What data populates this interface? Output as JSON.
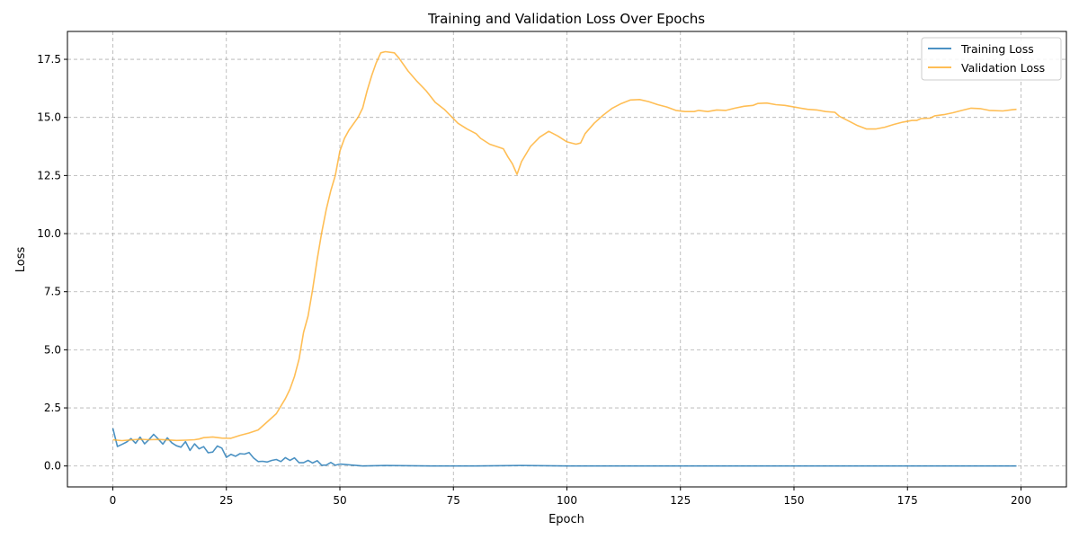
{
  "chart_data": {
    "type": "line",
    "title": "Training and Validation Loss Over Epochs",
    "xlabel": "Epoch",
    "ylabel": "Loss",
    "xlim": [
      -10,
      210
    ],
    "ylim": [
      -0.9,
      18.7
    ],
    "xticks": [
      0,
      25,
      50,
      75,
      100,
      125,
      150,
      175,
      200
    ],
    "yticks": [
      0.0,
      2.5,
      5.0,
      7.5,
      10.0,
      12.5,
      15.0,
      17.5
    ],
    "xtick_labels": [
      "0",
      "25",
      "50",
      "75",
      "100",
      "125",
      "150",
      "175",
      "200"
    ],
    "ytick_labels": [
      "0.0",
      "2.5",
      "5.0",
      "7.5",
      "10.0",
      "12.5",
      "15.0",
      "17.5"
    ],
    "grid": true,
    "legend_position": "top-right",
    "series": [
      {
        "name": "Training Loss",
        "color": "#1f77b4",
        "points": [
          [
            0,
            1.62
          ],
          [
            1,
            0.84
          ],
          [
            2,
            0.93
          ],
          [
            3,
            1.03
          ],
          [
            4,
            1.18
          ],
          [
            5,
            0.98
          ],
          [
            6,
            1.24
          ],
          [
            7,
            0.95
          ],
          [
            8,
            1.14
          ],
          [
            9,
            1.36
          ],
          [
            10,
            1.16
          ],
          [
            11,
            0.94
          ],
          [
            12,
            1.21
          ],
          [
            13,
            1.0
          ],
          [
            14,
            0.87
          ],
          [
            15,
            0.81
          ],
          [
            16,
            1.05
          ],
          [
            17,
            0.67
          ],
          [
            18,
            0.95
          ],
          [
            19,
            0.74
          ],
          [
            20,
            0.83
          ],
          [
            21,
            0.57
          ],
          [
            22,
            0.6
          ],
          [
            23,
            0.86
          ],
          [
            24,
            0.77
          ],
          [
            25,
            0.37
          ],
          [
            26,
            0.5
          ],
          [
            27,
            0.42
          ],
          [
            28,
            0.53
          ],
          [
            29,
            0.51
          ],
          [
            30,
            0.58
          ],
          [
            31,
            0.34
          ],
          [
            32,
            0.19
          ],
          [
            33,
            0.2
          ],
          [
            34,
            0.17
          ],
          [
            35,
            0.24
          ],
          [
            36,
            0.28
          ],
          [
            37,
            0.19
          ],
          [
            38,
            0.36
          ],
          [
            39,
            0.24
          ],
          [
            40,
            0.35
          ],
          [
            41,
            0.14
          ],
          [
            42,
            0.14
          ],
          [
            43,
            0.24
          ],
          [
            44,
            0.13
          ],
          [
            45,
            0.23
          ],
          [
            46,
            0.03
          ],
          [
            47,
            0.04
          ],
          [
            48,
            0.15
          ],
          [
            49,
            0.03
          ],
          [
            50,
            0.08
          ],
          [
            52,
            0.05
          ],
          [
            55,
            0.0
          ],
          [
            60,
            0.02
          ],
          [
            70,
            0.0
          ],
          [
            80,
            0.0
          ],
          [
            90,
            0.02
          ],
          [
            100,
            0.0
          ],
          [
            110,
            0.0
          ],
          [
            120,
            0.0
          ],
          [
            130,
            0.0
          ],
          [
            140,
            0.0
          ],
          [
            150,
            0.0
          ],
          [
            160,
            0.0
          ],
          [
            170,
            0.0
          ],
          [
            180,
            0.0
          ],
          [
            190,
            0.0
          ],
          [
            199,
            0.0
          ]
        ]
      },
      {
        "name": "Validation Loss",
        "color": "#ffae2b",
        "points": [
          [
            0,
            1.13
          ],
          [
            2,
            1.09
          ],
          [
            4,
            1.12
          ],
          [
            6,
            1.15
          ],
          [
            8,
            1.13
          ],
          [
            10,
            1.14
          ],
          [
            12,
            1.12
          ],
          [
            14,
            1.1
          ],
          [
            16,
            1.11
          ],
          [
            18,
            1.13
          ],
          [
            19,
            1.16
          ],
          [
            20,
            1.22
          ],
          [
            22,
            1.25
          ],
          [
            24,
            1.2
          ],
          [
            26,
            1.19
          ],
          [
            28,
            1.32
          ],
          [
            30,
            1.42
          ],
          [
            32,
            1.55
          ],
          [
            34,
            1.9
          ],
          [
            36,
            2.25
          ],
          [
            38,
            2.9
          ],
          [
            39,
            3.3
          ],
          [
            40,
            3.85
          ],
          [
            41,
            4.6
          ],
          [
            42,
            5.75
          ],
          [
            43,
            6.45
          ],
          [
            44,
            7.6
          ],
          [
            45,
            8.9
          ],
          [
            46,
            10.05
          ],
          [
            47,
            11.05
          ],
          [
            48,
            11.85
          ],
          [
            49,
            12.5
          ],
          [
            50,
            13.55
          ],
          [
            51,
            14.1
          ],
          [
            52,
            14.45
          ],
          [
            54,
            15.0
          ],
          [
            55,
            15.4
          ],
          [
            56,
            16.15
          ],
          [
            57,
            16.8
          ],
          [
            58,
            17.35
          ],
          [
            59,
            17.78
          ],
          [
            60,
            17.83
          ],
          [
            62,
            17.78
          ],
          [
            63,
            17.55
          ],
          [
            65,
            17.0
          ],
          [
            67,
            16.55
          ],
          [
            69,
            16.15
          ],
          [
            71,
            15.65
          ],
          [
            73,
            15.35
          ],
          [
            76,
            14.75
          ],
          [
            78,
            14.5
          ],
          [
            80,
            14.3
          ],
          [
            81,
            14.1
          ],
          [
            83,
            13.85
          ],
          [
            86,
            13.65
          ],
          [
            87,
            13.3
          ],
          [
            88,
            13.0
          ],
          [
            89,
            12.55
          ],
          [
            90,
            13.1
          ],
          [
            92,
            13.75
          ],
          [
            94,
            14.15
          ],
          [
            96,
            14.4
          ],
          [
            97,
            14.3
          ],
          [
            98,
            14.2
          ],
          [
            100,
            13.95
          ],
          [
            102,
            13.85
          ],
          [
            103,
            13.9
          ],
          [
            104,
            14.3
          ],
          [
            106,
            14.75
          ],
          [
            108,
            15.1
          ],
          [
            110,
            15.4
          ],
          [
            112,
            15.6
          ],
          [
            114,
            15.75
          ],
          [
            116,
            15.77
          ],
          [
            118,
            15.68
          ],
          [
            120,
            15.55
          ],
          [
            122,
            15.45
          ],
          [
            124,
            15.3
          ],
          [
            126,
            15.25
          ],
          [
            128,
            15.25
          ],
          [
            129,
            15.3
          ],
          [
            131,
            15.25
          ],
          [
            133,
            15.32
          ],
          [
            135,
            15.3
          ],
          [
            137,
            15.4
          ],
          [
            139,
            15.48
          ],
          [
            141,
            15.52
          ],
          [
            142,
            15.6
          ],
          [
            144,
            15.62
          ],
          [
            146,
            15.55
          ],
          [
            148,
            15.52
          ],
          [
            150,
            15.45
          ],
          [
            153,
            15.35
          ],
          [
            155,
            15.32
          ],
          [
            157,
            15.25
          ],
          [
            159,
            15.22
          ],
          [
            160,
            15.05
          ],
          [
            162,
            14.85
          ],
          [
            164,
            14.65
          ],
          [
            166,
            14.5
          ],
          [
            168,
            14.5
          ],
          [
            170,
            14.58
          ],
          [
            172,
            14.7
          ],
          [
            174,
            14.8
          ],
          [
            176,
            14.87
          ],
          [
            177,
            14.87
          ],
          [
            178,
            14.95
          ],
          [
            180,
            14.97
          ],
          [
            181,
            15.07
          ],
          [
            183,
            15.12
          ],
          [
            185,
            15.2
          ],
          [
            187,
            15.3
          ],
          [
            189,
            15.4
          ],
          [
            191,
            15.38
          ],
          [
            193,
            15.3
          ],
          [
            196,
            15.28
          ],
          [
            198,
            15.33
          ],
          [
            199,
            15.35
          ]
        ]
      }
    ]
  }
}
